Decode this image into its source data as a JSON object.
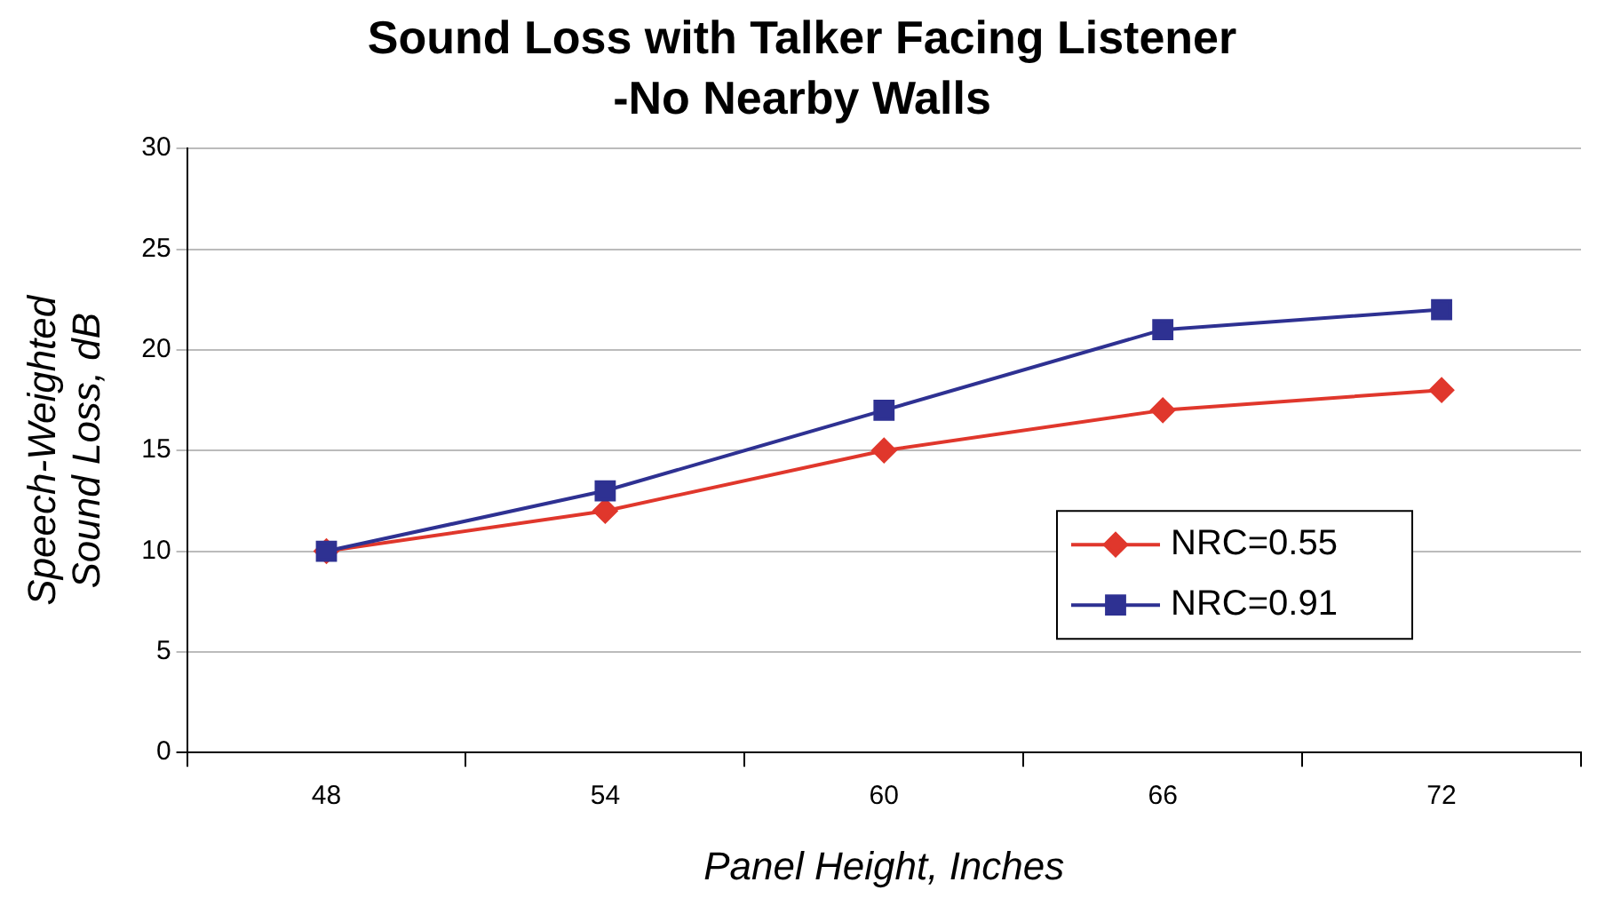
{
  "chart_data": {
    "type": "line",
    "title": "Sound Loss with Talker Facing Listener\n-No Nearby Walls",
    "xlabel": "Panel Height, Inches",
    "ylabel": "Speech-Weighted\nSound Loss, dB",
    "categories": [
      "48",
      "54",
      "60",
      "66",
      "72"
    ],
    "series": [
      {
        "name": "NRC=0.55",
        "color": "#e0372c",
        "marker": "diamond",
        "values": [
          10,
          12,
          15,
          17,
          18
        ]
      },
      {
        "name": "NRC=0.91",
        "color": "#2e3192",
        "marker": "square",
        "values": [
          10,
          13,
          17,
          21,
          22
        ]
      }
    ],
    "ylim": [
      0,
      30
    ],
    "yticks": [
      0,
      5,
      10,
      15,
      20,
      25,
      30
    ],
    "grid": "y",
    "legend": "right",
    "line_style": "solid"
  }
}
